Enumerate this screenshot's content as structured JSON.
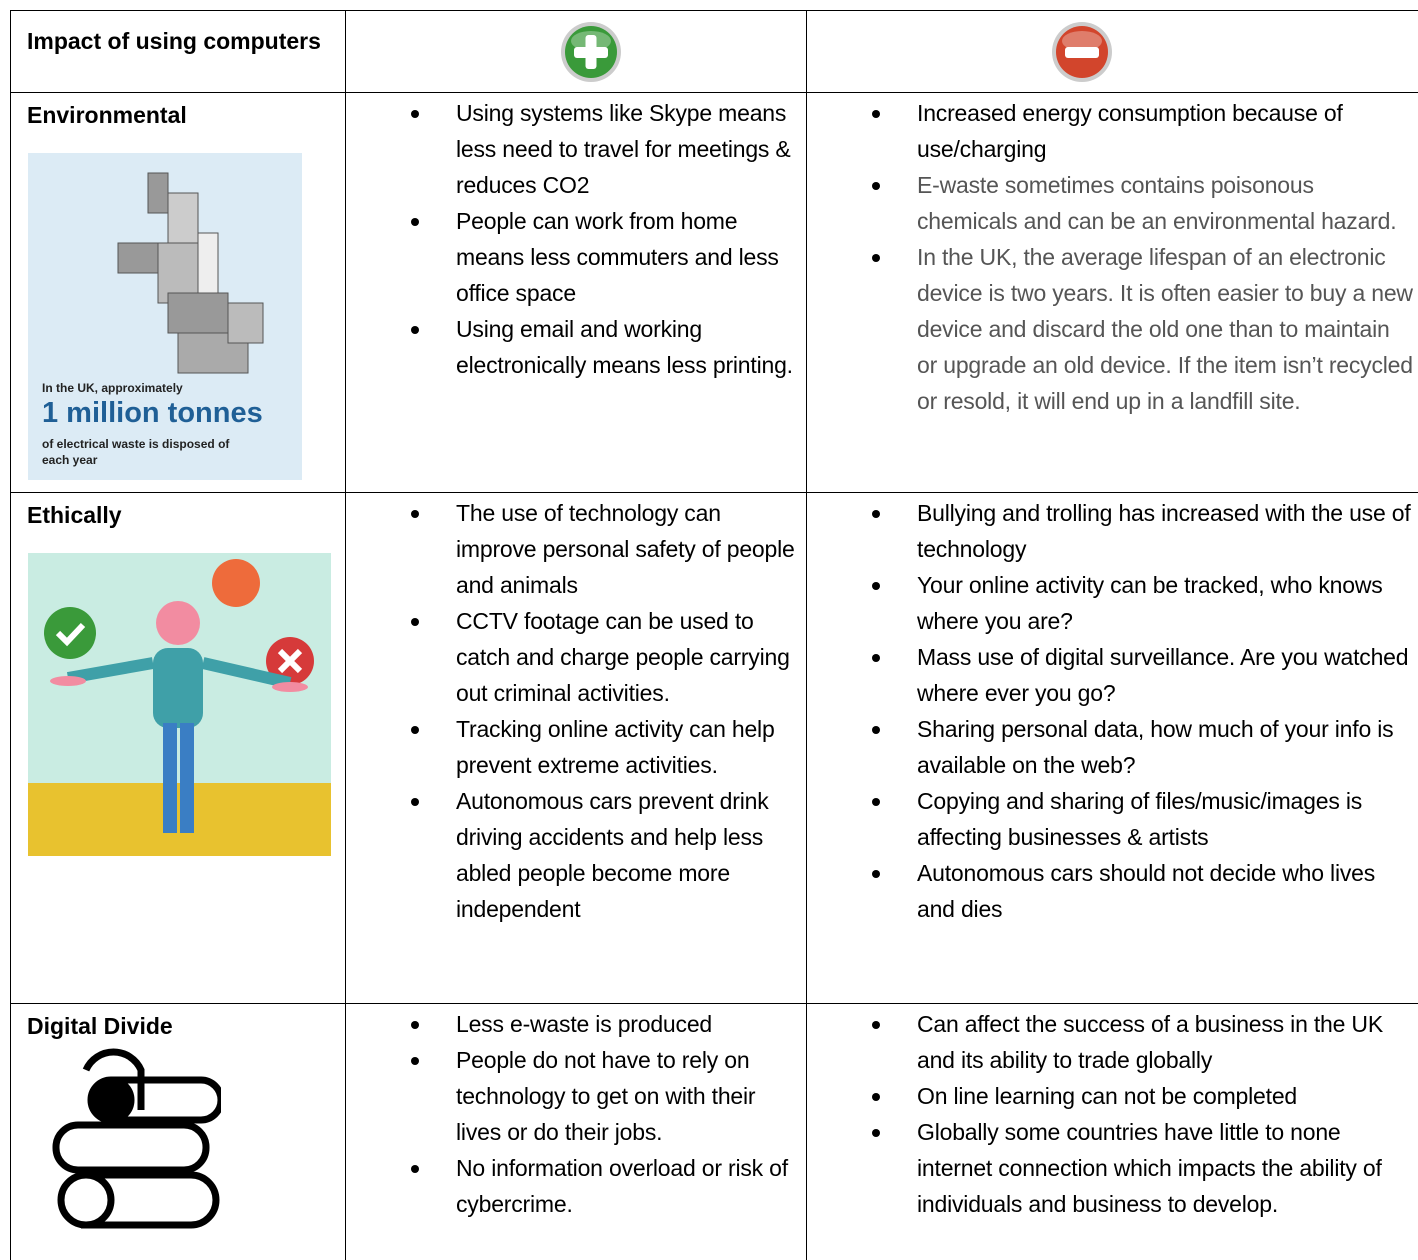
{
  "table": {
    "header": {
      "label": "Impact of using computers"
    },
    "rows": [
      {
        "label": "Environmental",
        "infographic": {
          "intro": "In the UK, approximately",
          "figure": "1 million tonnes",
          "outro": "of electrical waste is disposed of each year"
        },
        "pros": [
          "Using systems like Skype means less need to travel for meetings & reduces CO2",
          "People can work from home means less commuters and less office space",
          "Using email and working electronically means less printing."
        ],
        "cons": [
          "Increased energy consumption because of use/charging",
          "E-waste sometimes contains poisonous chemicals and can be an environmental hazard.",
          "In the UK, the average lifespan of an electronic device is two years. It is often easier to buy a new device and discard the old one than to maintain or upgrade an old device. If the item isn’t recycled or resold, it will end up in a landfill site."
        ]
      },
      {
        "label": "Ethically",
        "pros": [
          "The use of technology can improve personal safety of people and animals",
          "CCTV footage can be used to catch and charge people carrying out criminal activities.",
          "Tracking online activity can help prevent extreme activities.",
          "Autonomous cars prevent drink driving accidents and help less abled people become more independent"
        ],
        "cons": [
          "Bullying and trolling has increased with the use of technology",
          "Your online activity can be tracked, who knows where you are?",
          "Mass use of digital surveillance. Are you watched where ever you go?",
          "Sharing personal data, how much of your info is available on the web?",
          "Copying and sharing of files/music/images is affecting businesses & artists",
          "Autonomous cars should not decide who lives and dies"
        ]
      },
      {
        "label": "Digital Divide",
        "pros": [
          "Less e-waste is produced",
          "People do not have to rely on technology to get on with their lives or do their jobs.",
          "No information overload or risk of cybercrime."
        ],
        "cons": [
          "Can affect the success of a business in the UK and its ability to trade globally",
          "On line learning can not be completed",
          "Globally some countries have little to none internet connection which impacts the ability of individuals and business to develop."
        ]
      }
    ]
  }
}
